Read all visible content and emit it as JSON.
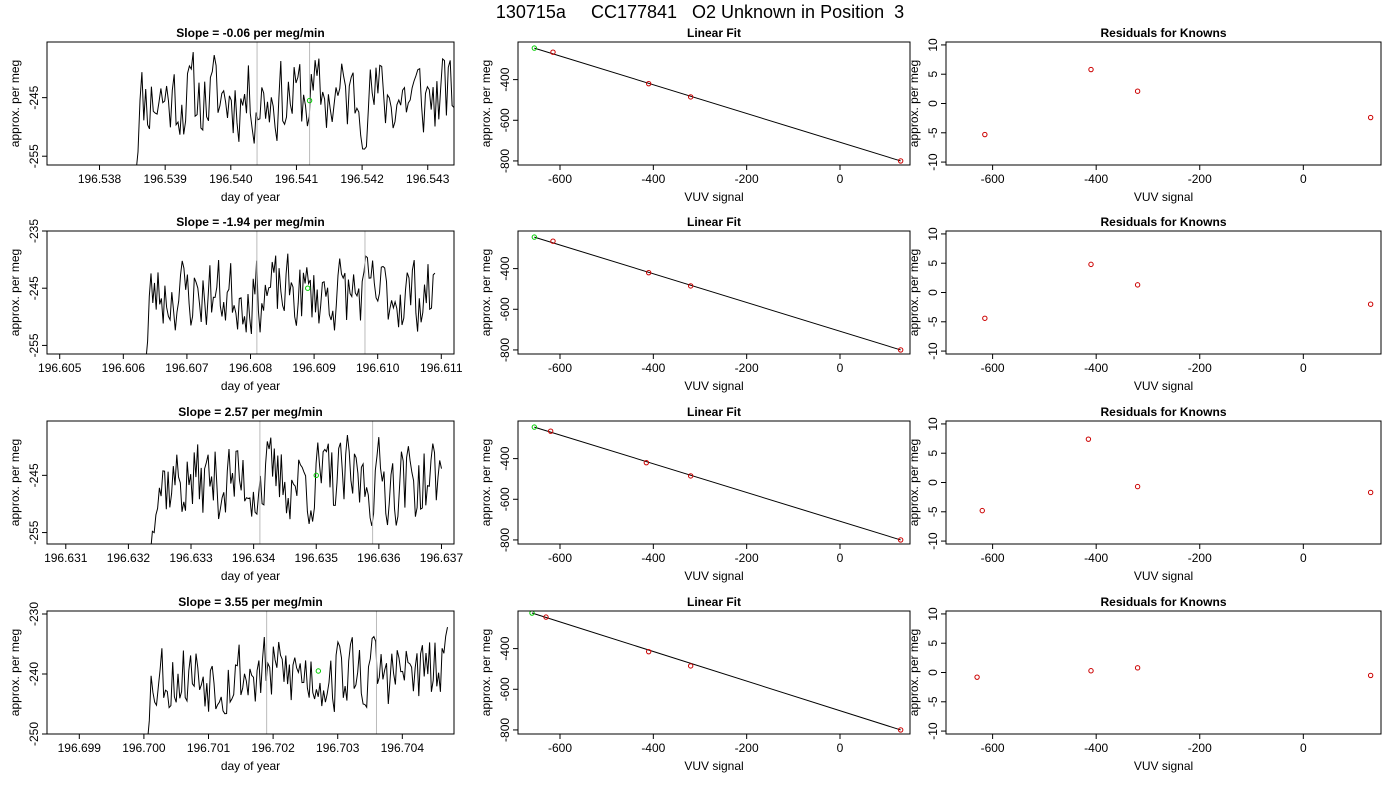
{
  "title": "130715a     CC177841   O2 Unknown in Position  3",
  "colors": {
    "series": "#000000",
    "known": "#cc0000",
    "unknown": "#00cc00",
    "marker_line": "#bbbbbb"
  },
  "chart_data": [
    {
      "type": "line",
      "row": 0,
      "title": "Slope =  -0.06  per meg/min",
      "xlabel": "day of year",
      "ylabel": "approx. per meg",
      "xlim": [
        196.5372,
        196.5434
      ],
      "ylim": [
        -256.5,
        -235.5
      ],
      "xticks": [
        "196.538",
        "196.539",
        "196.540",
        "196.541",
        "196.542",
        "196.543"
      ],
      "xtick_values": [
        196.538,
        196.539,
        196.54,
        196.541,
        196.542,
        196.543
      ],
      "yticks": [
        "-255",
        "-245"
      ],
      "ytick_values": [
        -255,
        -245
      ],
      "series_x_range": [
        196.5385,
        196.5434
      ],
      "series_center": -245,
      "series_amplitude": 10,
      "seed": 11,
      "vlines": [
        196.5404,
        196.5412
      ],
      "unknown_point": {
        "x": 196.5412,
        "y": -245.5
      }
    },
    {
      "type": "scatter",
      "row": 0,
      "title": "Linear Fit",
      "xlabel": "VUV signal",
      "ylabel": "approx. per meg",
      "xlim": [
        -690,
        150
      ],
      "ylim": [
        -820,
        -215
      ],
      "xticks": [
        "-600",
        "-400",
        "-200",
        "0"
      ],
      "xtick_values": [
        -600,
        -400,
        -200,
        0
      ],
      "yticks": [
        "-800",
        "-600",
        "-400"
      ],
      "ytick_values": [
        -800,
        -600,
        -400
      ],
      "fit_line": [
        [
          -655,
          -245
        ],
        [
          130,
          -800
        ]
      ],
      "known_points": [
        [
          -615,
          -265
        ],
        [
          -410,
          -420
        ],
        [
          -320,
          -485
        ],
        [
          130,
          -800
        ]
      ],
      "unknown_points": [
        [
          -655,
          -245
        ]
      ]
    },
    {
      "type": "scatter",
      "row": 0,
      "title": "Residuals for Knowns",
      "xlabel": "VUV signal",
      "ylabel": "approx. per meg",
      "xlim": [
        -690,
        150
      ],
      "ylim": [
        -10.5,
        10.5
      ],
      "xticks": [
        "-600",
        "-400",
        "-200",
        "0"
      ],
      "xtick_values": [
        -600,
        -400,
        -200,
        0
      ],
      "yticks": [
        "-10",
        "-5",
        "0",
        "5",
        "10"
      ],
      "ytick_values": [
        -10,
        -5,
        0,
        5,
        10
      ],
      "known_points": [
        [
          -615,
          -5.3
        ],
        [
          -410,
          5.8
        ],
        [
          -320,
          2.1
        ],
        [
          130,
          -2.4
        ]
      ]
    },
    {
      "type": "line",
      "row": 1,
      "title": "Slope =  -1.94  per meg/min",
      "xlabel": "day of year",
      "ylabel": "approx. per meg",
      "xlim": [
        196.6048,
        196.6112
      ],
      "ylim": [
        -256.5,
        -235
      ],
      "xticks": [
        "196.605",
        "196.606",
        "196.607",
        "196.608",
        "196.609",
        "196.610",
        "196.611"
      ],
      "xtick_values": [
        196.605,
        196.606,
        196.607,
        196.608,
        196.609,
        196.61,
        196.611
      ],
      "yticks": [
        "-255",
        "-245",
        "-235"
      ],
      "ytick_values": [
        -255,
        -245,
        -235
      ],
      "series_x_range": [
        196.6063,
        196.6109
      ],
      "series_center": -246,
      "series_amplitude": 9,
      "seed": 23,
      "vlines": [
        196.6081,
        196.6098
      ],
      "unknown_point": {
        "x": 196.6089,
        "y": -245
      }
    },
    {
      "type": "scatter",
      "row": 1,
      "title": "Linear Fit",
      "xlabel": "VUV signal",
      "ylabel": "approx. per meg",
      "xlim": [
        -690,
        150
      ],
      "ylim": [
        -820,
        -215
      ],
      "xticks": [
        "-600",
        "-400",
        "-200",
        "0"
      ],
      "xtick_values": [
        -600,
        -400,
        -200,
        0
      ],
      "yticks": [
        "-800",
        "-600",
        "-400"
      ],
      "ytick_values": [
        -800,
        -600,
        -400
      ],
      "fit_line": [
        [
          -655,
          -245
        ],
        [
          130,
          -800
        ]
      ],
      "known_points": [
        [
          -615,
          -265
        ],
        [
          -410,
          -420
        ],
        [
          -320,
          -485
        ],
        [
          130,
          -800
        ]
      ],
      "unknown_points": [
        [
          -655,
          -245
        ]
      ]
    },
    {
      "type": "scatter",
      "row": 1,
      "title": "Residuals for Knowns",
      "xlabel": "VUV signal",
      "ylabel": "approx. per meg",
      "xlim": [
        -690,
        150
      ],
      "ylim": [
        -10.5,
        10.5
      ],
      "xticks": [
        "-600",
        "-400",
        "-200",
        "0"
      ],
      "xtick_values": [
        -600,
        -400,
        -200,
        0
      ],
      "yticks": [
        "-10",
        "-5",
        "0",
        "5",
        "10"
      ],
      "ytick_values": [
        -10,
        -5,
        0,
        5,
        10
      ],
      "known_points": [
        [
          -615,
          -4.4
        ],
        [
          -410,
          4.8
        ],
        [
          -320,
          1.3
        ],
        [
          130,
          -2.0
        ]
      ]
    },
    {
      "type": "line",
      "row": 2,
      "title": "Slope =  2.57  per meg/min",
      "xlabel": "day of year",
      "ylabel": "approx. per meg",
      "xlim": [
        196.6307,
        196.6372
      ],
      "ylim": [
        -257,
        -235.5
      ],
      "xticks": [
        "196.631",
        "196.632",
        "196.633",
        "196.634",
        "196.635",
        "196.636",
        "196.637"
      ],
      "xtick_values": [
        196.631,
        196.632,
        196.633,
        196.634,
        196.635,
        196.636,
        196.637
      ],
      "yticks": [
        "-255",
        "-245"
      ],
      "ytick_values": [
        -255,
        -245
      ],
      "series_x_range": [
        196.6323,
        196.637
      ],
      "series_center": -246,
      "series_amplitude": 10,
      "seed": 37,
      "vlines": [
        196.6341,
        196.6359
      ],
      "unknown_point": {
        "x": 196.635,
        "y": -245
      }
    },
    {
      "type": "scatter",
      "row": 2,
      "title": "Linear Fit",
      "xlabel": "VUV signal",
      "ylabel": "approx. per meg",
      "xlim": [
        -690,
        150
      ],
      "ylim": [
        -820,
        -215
      ],
      "xticks": [
        "-600",
        "-400",
        "-200",
        "0"
      ],
      "xtick_values": [
        -600,
        -400,
        -200,
        0
      ],
      "yticks": [
        "-800",
        "-600",
        "-400"
      ],
      "ytick_values": [
        -800,
        -600,
        -400
      ],
      "fit_line": [
        [
          -655,
          -245
        ],
        [
          130,
          -800
        ]
      ],
      "known_points": [
        [
          -620,
          -265
        ],
        [
          -415,
          -420
        ],
        [
          -320,
          -485
        ],
        [
          130,
          -800
        ]
      ],
      "unknown_points": [
        [
          -655,
          -245
        ]
      ]
    },
    {
      "type": "scatter",
      "row": 2,
      "title": "Residuals for Knowns",
      "xlabel": "VUV signal",
      "ylabel": "approx. per meg",
      "xlim": [
        -690,
        150
      ],
      "ylim": [
        -10.5,
        10.5
      ],
      "xticks": [
        "-600",
        "-400",
        "-200",
        "0"
      ],
      "xtick_values": [
        -600,
        -400,
        -200,
        0
      ],
      "yticks": [
        "-10",
        "-5",
        "0",
        "5",
        "10"
      ],
      "ytick_values": [
        -10,
        -5,
        0,
        5,
        10
      ],
      "known_points": [
        [
          -620,
          -4.8
        ],
        [
          -415,
          7.4
        ],
        [
          -320,
          -0.7
        ],
        [
          130,
          -1.7
        ]
      ]
    },
    {
      "type": "line",
      "row": 3,
      "title": "Slope =  3.55  per meg/min",
      "xlabel": "day of year",
      "ylabel": "approx. per meg",
      "xlim": [
        196.6985,
        196.7048
      ],
      "ylim": [
        -250,
        -229.5
      ],
      "xticks": [
        "196.699",
        "196.700",
        "196.701",
        "196.702",
        "196.703",
        "196.704"
      ],
      "xtick_values": [
        196.699,
        196.7,
        196.701,
        196.702,
        196.703,
        196.704
      ],
      "yticks": [
        "-250",
        "-240",
        "-230"
      ],
      "ytick_values": [
        -250,
        -240,
        -230
      ],
      "series_x_range": [
        196.7,
        196.7047
      ],
      "series_center": -240,
      "series_amplitude": 9,
      "seed": 53,
      "vlines": [
        196.7019,
        196.7036
      ],
      "unknown_point": {
        "x": 196.7027,
        "y": -239.5
      }
    },
    {
      "type": "scatter",
      "row": 3,
      "title": "Linear Fit",
      "xlabel": "VUV signal",
      "ylabel": "approx. per meg",
      "xlim": [
        -690,
        150
      ],
      "ylim": [
        -820,
        -215
      ],
      "xticks": [
        "-600",
        "-400",
        "-200",
        "0"
      ],
      "xtick_values": [
        -600,
        -400,
        -200,
        0
      ],
      "yticks": [
        "-800",
        "-600",
        "-400"
      ],
      "ytick_values": [
        -800,
        -600,
        -400
      ],
      "fit_line": [
        [
          -660,
          -225
        ],
        [
          130,
          -800
        ]
      ],
      "known_points": [
        [
          -630,
          -245
        ],
        [
          -410,
          -415
        ],
        [
          -320,
          -485
        ],
        [
          130,
          -800
        ]
      ],
      "unknown_points": [
        [
          -660,
          -225
        ]
      ]
    },
    {
      "type": "scatter",
      "row": 3,
      "title": "Residuals for Knowns",
      "xlabel": "VUV signal",
      "ylabel": "approx. per meg",
      "xlim": [
        -690,
        150
      ],
      "ylim": [
        -10.5,
        10.5
      ],
      "xticks": [
        "-600",
        "-400",
        "-200",
        "0"
      ],
      "xtick_values": [
        -600,
        -400,
        -200,
        0
      ],
      "yticks": [
        "-10",
        "-5",
        "0",
        "5",
        "10"
      ],
      "ytick_values": [
        -10,
        -5,
        0,
        5,
        10
      ],
      "known_points": [
        [
          -630,
          -0.8
        ],
        [
          -410,
          0.3
        ],
        [
          -320,
          0.8
        ],
        [
          130,
          -0.5
        ]
      ]
    }
  ]
}
